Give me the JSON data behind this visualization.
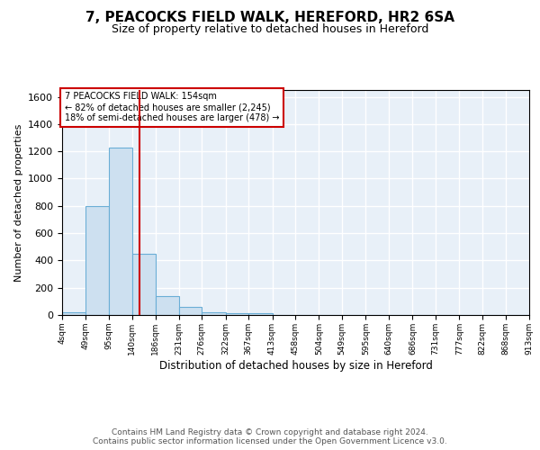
{
  "title": "7, PEACOCKS FIELD WALK, HEREFORD, HR2 6SA",
  "subtitle": "Size of property relative to detached houses in Hereford",
  "xlabel": "Distribution of detached houses by size in Hereford",
  "ylabel": "Number of detached properties",
  "bin_edges": [
    4,
    49,
    95,
    140,
    186,
    231,
    276,
    322,
    367,
    413,
    458,
    504,
    549,
    595,
    640,
    686,
    731,
    777,
    822,
    868,
    913
  ],
  "bar_heights": [
    20,
    800,
    1230,
    450,
    140,
    60,
    20,
    10,
    10,
    0,
    0,
    0,
    0,
    0,
    0,
    0,
    0,
    0,
    0,
    0
  ],
  "bar_color": "#cde0f0",
  "bar_edge_color": "#6aaed6",
  "vline_x": 154,
  "vline_color": "#cc0000",
  "ylim": [
    0,
    1650
  ],
  "yticks": [
    0,
    200,
    400,
    600,
    800,
    1000,
    1200,
    1400,
    1600
  ],
  "annotation_text": "7 PEACOCKS FIELD WALK: 154sqm\n← 82% of detached houses are smaller (2,245)\n18% of semi-detached houses are larger (478) →",
  "annotation_box_color": "#ffffff",
  "annotation_box_edge_color": "#cc0000",
  "footer_line1": "Contains HM Land Registry data © Crown copyright and database right 2024.",
  "footer_line2": "Contains public sector information licensed under the Open Government Licence v3.0.",
  "background_color": "#ffffff",
  "plot_background_color": "#e8f0f8",
  "grid_color": "#ffffff",
  "tick_labels": [
    "4sqm",
    "49sqm",
    "95sqm",
    "140sqm",
    "186sqm",
    "231sqm",
    "276sqm",
    "322sqm",
    "367sqm",
    "413sqm",
    "458sqm",
    "504sqm",
    "549sqm",
    "595sqm",
    "640sqm",
    "686sqm",
    "731sqm",
    "777sqm",
    "822sqm",
    "868sqm",
    "913sqm"
  ]
}
